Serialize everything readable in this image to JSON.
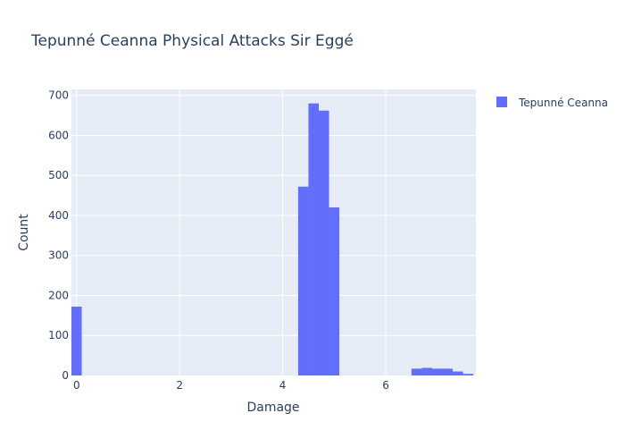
{
  "chart_data": {
    "type": "bar",
    "title": "Tepunné Ceanna Physical Attacks Sir Eggé",
    "xlabel": "Damage",
    "ylabel": "Count",
    "xlim": [
      -0.1,
      7.75
    ],
    "ylim": [
      0,
      715
    ],
    "x_ticks": [
      0,
      2,
      4,
      6
    ],
    "y_ticks": [
      0,
      100,
      200,
      300,
      400,
      500,
      600,
      700
    ],
    "grid": true,
    "legend_position": "top-right",
    "bar_color": "#636efa",
    "plot_background": "#e5ecf6",
    "series": [
      {
        "name": "Tepunné Ceanna",
        "bins": [
          {
            "x0": -0.1,
            "x1": 0.1,
            "count": 172
          },
          {
            "x0": 4.3,
            "x1": 4.5,
            "count": 472
          },
          {
            "x0": 4.5,
            "x1": 4.7,
            "count": 680
          },
          {
            "x0": 4.7,
            "x1": 4.9,
            "count": 662
          },
          {
            "x0": 4.9,
            "x1": 5.1,
            "count": 420
          },
          {
            "x0": 6.5,
            "x1": 6.7,
            "count": 17
          },
          {
            "x0": 6.7,
            "x1": 6.9,
            "count": 19
          },
          {
            "x0": 6.9,
            "x1": 7.1,
            "count": 17
          },
          {
            "x0": 7.1,
            "x1": 7.3,
            "count": 17
          },
          {
            "x0": 7.3,
            "x1": 7.5,
            "count": 10
          },
          {
            "x0": 7.5,
            "x1": 7.7,
            "count": 4
          }
        ]
      }
    ]
  }
}
